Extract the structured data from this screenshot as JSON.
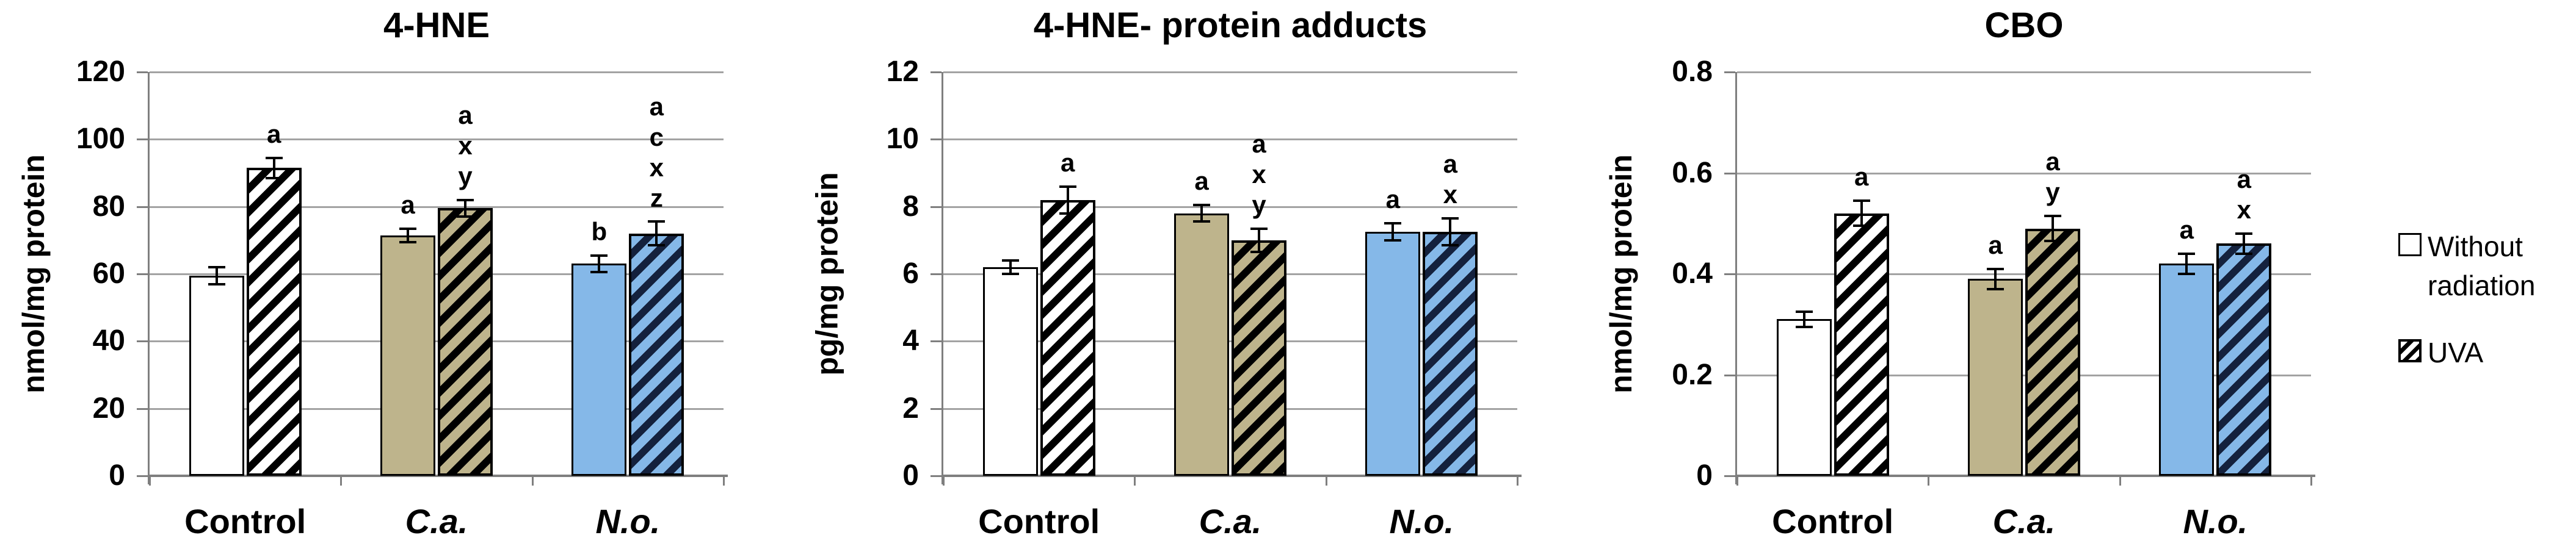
{
  "figure": {
    "background": "#FFFFFF"
  },
  "legend": {
    "position": "right",
    "items": [
      {
        "label": "Without radiation",
        "swatch": "plain",
        "fill": "#FFFFFF"
      },
      {
        "label": "UVA",
        "swatch": "hatched",
        "fill": "#FFFFFF"
      }
    ]
  },
  "colors": {
    "category_fills": [
      "#FFFFFF",
      "#BEB48C",
      "#85B8E8"
    ],
    "hatch_stripes": [
      "#000000",
      "#000000",
      "#14213D"
    ],
    "gridline": "#A3A3A3",
    "axis": "#7F7F7F"
  },
  "chart_data": [
    {
      "type": "bar",
      "title": "4-HNE",
      "ylabel": "nmol/mg protein",
      "ylim": [
        0,
        120
      ],
      "yticks": [
        0,
        20,
        40,
        60,
        80,
        100,
        120
      ],
      "ytick_labels": [
        "0",
        "20",
        "40",
        "60",
        "80",
        "100",
        "120"
      ],
      "grid": true,
      "categories": [
        "Control",
        "C.a.",
        "N.o."
      ],
      "categories_italic": [
        false,
        true,
        true
      ],
      "series": [
        {
          "name": "Without radiation",
          "hatched": false,
          "values": [
            59.5,
            71.5,
            63
          ],
          "errors": [
            2.5,
            2,
            2.5
          ],
          "sig_letters": [
            [],
            [
              "a"
            ],
            [
              "b"
            ]
          ]
        },
        {
          "name": "UVA",
          "hatched": true,
          "values": [
            91.5,
            79.5,
            72
          ],
          "errors": [
            3,
            2.5,
            3.5
          ],
          "sig_letters": [
            [
              "a"
            ],
            [
              "a",
              "x",
              "y"
            ],
            [
              "a",
              "c",
              "x",
              "z"
            ]
          ]
        }
      ]
    },
    {
      "type": "bar",
      "title": "4-HNE- protein adducts",
      "ylabel": "pg/mg protein",
      "ylim": [
        0,
        12
      ],
      "yticks": [
        0,
        2,
        4,
        6,
        8,
        10,
        12
      ],
      "ytick_labels": [
        "0",
        "2",
        "4",
        "6",
        "8",
        "10",
        "12"
      ],
      "grid": true,
      "categories": [
        "Control",
        "C.a.",
        "N.o."
      ],
      "categories_italic": [
        false,
        true,
        true
      ],
      "series": [
        {
          "name": "Without radiation",
          "hatched": false,
          "values": [
            6.2,
            7.8,
            7.25
          ],
          "errors": [
            0.2,
            0.25,
            0.25
          ],
          "sig_letters": [
            [],
            [
              "a"
            ],
            [
              "a"
            ]
          ]
        },
        {
          "name": "UVA",
          "hatched": true,
          "values": [
            8.2,
            7.0,
            7.25
          ],
          "errors": [
            0.4,
            0.35,
            0.4
          ],
          "sig_letters": [
            [
              "a"
            ],
            [
              "a",
              "x",
              "y"
            ],
            [
              "a",
              "x"
            ]
          ]
        }
      ]
    },
    {
      "type": "bar",
      "title": "CBO",
      "ylabel": "nmol/mg protein",
      "ylim": [
        0,
        0.8
      ],
      "yticks": [
        0,
        0.2,
        0.4,
        0.6,
        0.8
      ],
      "ytick_labels": [
        "0",
        "0.2",
        "0.4",
        "0.6",
        "0.8"
      ],
      "grid": true,
      "categories": [
        "Control",
        "C.a.",
        "N.o."
      ],
      "categories_italic": [
        false,
        true,
        true
      ],
      "series": [
        {
          "name": "Without radiation",
          "hatched": false,
          "values": [
            0.31,
            0.39,
            0.42
          ],
          "errors": [
            0.015,
            0.02,
            0.02
          ],
          "sig_letters": [
            [],
            [
              "a"
            ],
            [
              "a"
            ]
          ]
        },
        {
          "name": "UVA",
          "hatched": true,
          "values": [
            0.52,
            0.49,
            0.46
          ],
          "errors": [
            0.025,
            0.025,
            0.02
          ],
          "sig_letters": [
            [
              "a"
            ],
            [
              "a",
              "y"
            ],
            [
              "a",
              "x"
            ]
          ]
        }
      ]
    }
  ]
}
